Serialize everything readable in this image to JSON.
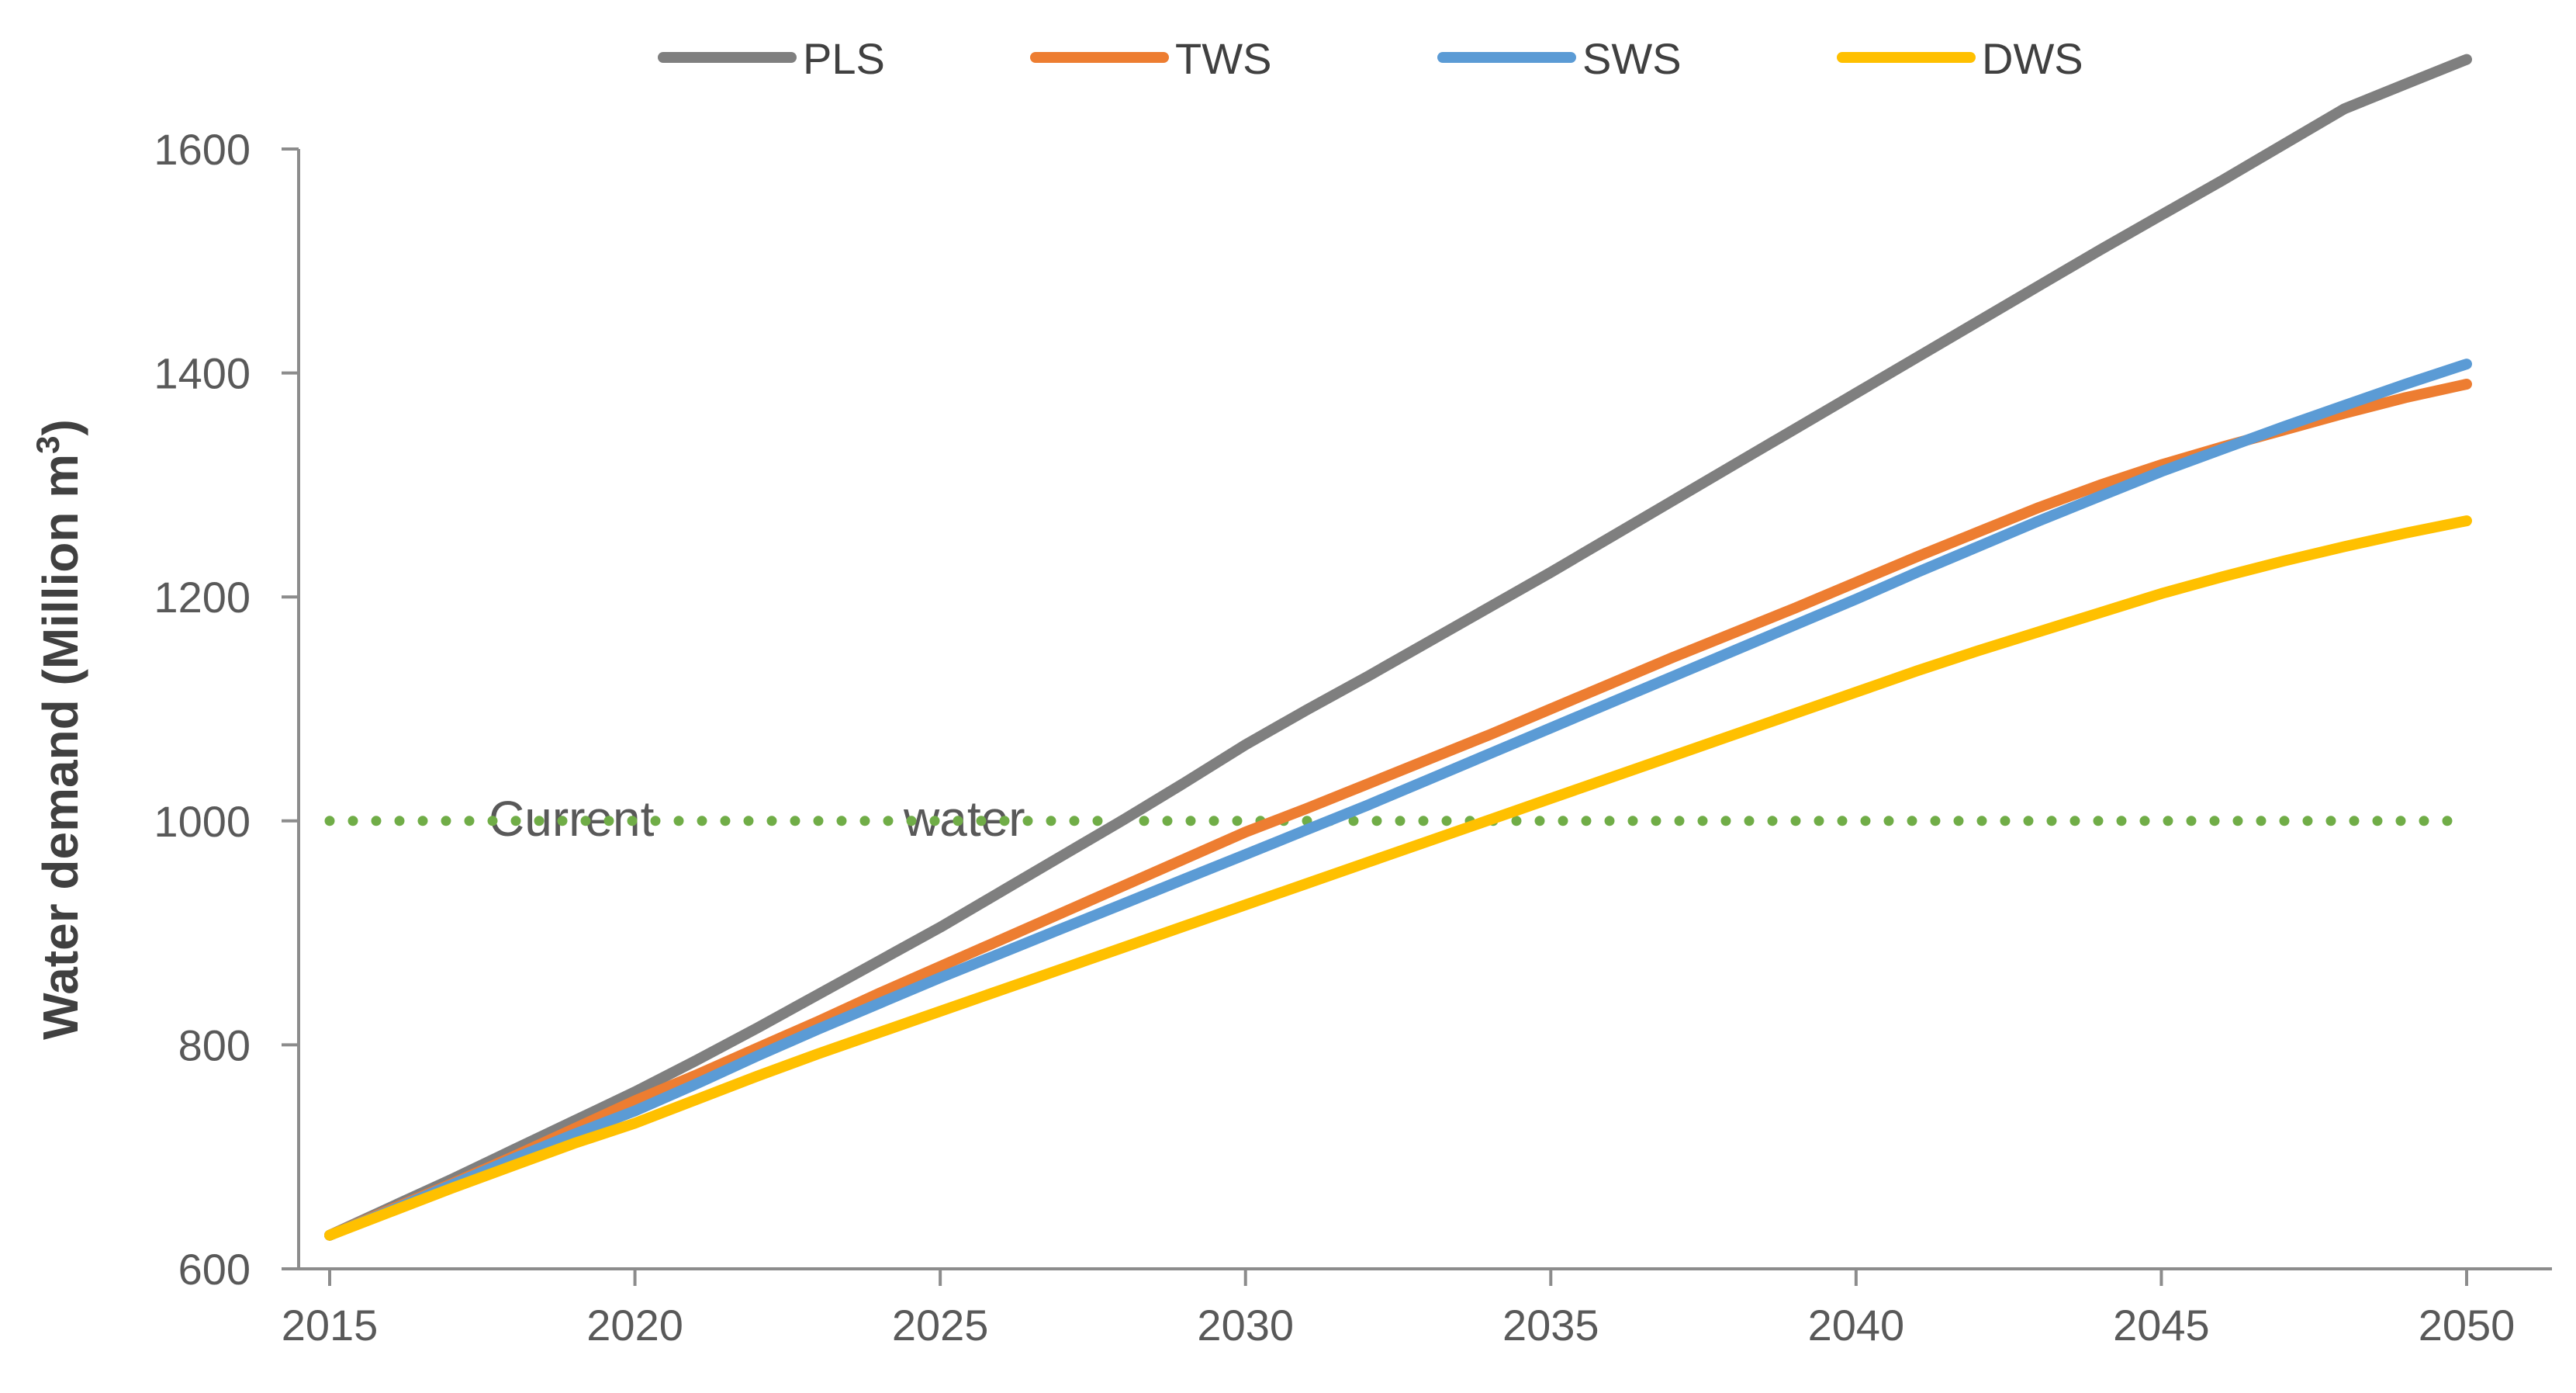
{
  "chart_data": {
    "type": "line",
    "title": "",
    "xlabel": "",
    "ylabel": "Water demand (Million m",
    "ylabel_superscript": "3",
    "ylabel_suffix": ")",
    "xlim": [
      2015,
      2050
    ],
    "ylim": [
      600,
      1600
    ],
    "xticks": [
      2015,
      2020,
      2025,
      2030,
      2035,
      2040,
      2045,
      2050
    ],
    "yticks": [
      600,
      800,
      1000,
      1200,
      1400,
      1600
    ],
    "legend_position": "top",
    "x": [
      2015,
      2016,
      2017,
      2018,
      2019,
      2020,
      2021,
      2022,
      2023,
      2024,
      2025,
      2026,
      2027,
      2028,
      2029,
      2030,
      2031,
      2032,
      2033,
      2034,
      2035,
      2036,
      2037,
      2038,
      2039,
      2040,
      2041,
      2042,
      2043,
      2044,
      2045,
      2046,
      2047,
      2048,
      2049,
      2050
    ],
    "series": [
      {
        "name": "PLS",
        "color": "#7F7F7F",
        "style": "solid",
        "values": [
          630,
          655,
          680,
          706,
          732,
          758,
          786,
          815,
          845,
          875,
          905,
          937,
          969,
          1001,
          1034,
          1068,
          1099,
          1129,
          1160,
          1191,
          1222,
          1254,
          1286,
          1318,
          1350,
          1382,
          1414,
          1446,
          1478,
          1510,
          1541,
          1572,
          1604,
          1636,
          1658,
          1680
        ]
      },
      {
        "name": "TWS",
        "color": "#ED7D31",
        "style": "solid",
        "values": [
          630,
          653,
          676,
          700,
          725,
          750,
          773,
          797,
          821,
          846,
          870,
          894,
          918,
          942,
          966,
          990,
          1011,
          1033,
          1055,
          1077,
          1100,
          1123,
          1146,
          1168,
          1190,
          1213,
          1236,
          1258,
          1280,
          1300,
          1318,
          1334,
          1349,
          1364,
          1378,
          1390
        ]
      },
      {
        "name": "SWS",
        "color": "#5B9BD5",
        "style": "solid",
        "values": [
          630,
          652,
          675,
          698,
          720,
          741,
          765,
          790,
          814,
          837,
          860,
          882,
          904,
          926,
          948,
          970,
          992,
          1014,
          1037,
          1060,
          1083,
          1106,
          1129,
          1152,
          1175,
          1198,
          1222,
          1245,
          1268,
          1290,
          1312,
          1332,
          1352,
          1371,
          1390,
          1408
        ]
      },
      {
        "name": "DWS",
        "color": "#FFC000",
        "style": "solid",
        "values": [
          630,
          651,
          672,
          692,
          712,
          730,
          751,
          772,
          792,
          811,
          830,
          849,
          868,
          887,
          906,
          925,
          944,
          963,
          982,
          1001,
          1020,
          1039,
          1058,
          1077,
          1096,
          1115,
          1134,
          1152,
          1169,
          1186,
          1203,
          1218,
          1232,
          1245,
          1257,
          1268
        ]
      }
    ],
    "reference_line": {
      "name": "Current water",
      "value": 1000,
      "color": "#70AD47",
      "style": "dotted"
    },
    "annotations": [
      "Current",
      "water"
    ]
  }
}
